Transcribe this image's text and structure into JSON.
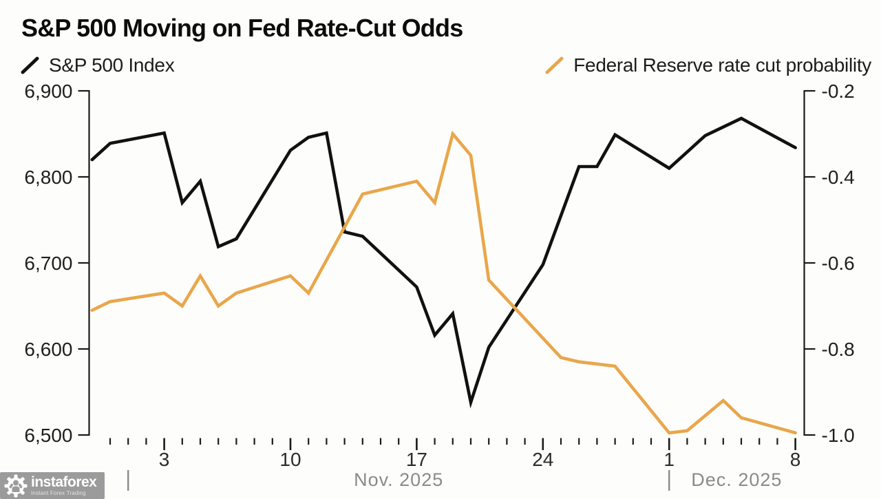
{
  "title": "S&P 500 Moving on Fed Rate-Cut Odds",
  "legend": {
    "left": {
      "label": "S&P 500 Index",
      "color": "#111111"
    },
    "right": {
      "label": "Federal Reserve rate cut probability",
      "color": "#E9A64A"
    }
  },
  "watermark": {
    "brand": "instaforex",
    "tagline": "Instant Forex Trading",
    "box_color": "#9B9B9B"
  },
  "chart_data": {
    "type": "line",
    "title": "S&P 500 Moving on Fed Rate-Cut Odds",
    "grid": false,
    "x_axis": {
      "unit": "calendar days (day 0 = Oct 30, 2025)",
      "first_tick_day": 1,
      "last_tick_day": 39,
      "major_ticks": [
        {
          "day": 4,
          "label": "3"
        },
        {
          "day": 11,
          "label": "10"
        },
        {
          "day": 18,
          "label": "17"
        },
        {
          "day": 25,
          "label": "24"
        },
        {
          "day": 32,
          "label": "1"
        },
        {
          "day": 39,
          "label": "8"
        }
      ],
      "months": [
        {
          "label": "Nov. 2025",
          "divider_day": 2,
          "span_end_day": 32
        },
        {
          "label": "Dec. 2025",
          "divider_day": 32,
          "span_end_day": 39.5
        }
      ]
    },
    "y_axis_left": {
      "min": 6500,
      "max": 6900,
      "tick_labels": [
        "6,900",
        "6,800",
        "6,700",
        "6,600",
        "6,500"
      ],
      "series": "S&P 500 Index"
    },
    "y_axis_right": {
      "min": -1.0,
      "max": -0.2,
      "tick_labels": [
        "-0.2",
        "-0.4",
        "-0.6",
        "-0.8",
        "-1.0"
      ],
      "series": "Federal Reserve rate cut probability"
    },
    "series": [
      {
        "name": "S&P 500 Index",
        "axis": "left",
        "color": "#111111",
        "points": [
          {
            "date": "Oct 30",
            "day": 0,
            "value": 6820
          },
          {
            "date": "Oct 31",
            "day": 1,
            "value": 6839
          },
          {
            "date": "Nov 3",
            "day": 4,
            "value": 6851
          },
          {
            "date": "Nov 4",
            "day": 5,
            "value": 6770
          },
          {
            "date": "Nov 5",
            "day": 6,
            "value": 6795
          },
          {
            "date": "Nov 6",
            "day": 7,
            "value": 6719
          },
          {
            "date": "Nov 7",
            "day": 8,
            "value": 6728
          },
          {
            "date": "Nov 10",
            "day": 11,
            "value": 6831
          },
          {
            "date": "Nov 11",
            "day": 12,
            "value": 6846
          },
          {
            "date": "Nov 12",
            "day": 13,
            "value": 6851
          },
          {
            "date": "Nov 13",
            "day": 14,
            "value": 6736
          },
          {
            "date": "Nov 14",
            "day": 15,
            "value": 6731
          },
          {
            "date": "Nov 17",
            "day": 18,
            "value": 6672
          },
          {
            "date": "Nov 18",
            "day": 19,
            "value": 6616
          },
          {
            "date": "Nov 19",
            "day": 20,
            "value": 6641
          },
          {
            "date": "Nov 20",
            "day": 21,
            "value": 6538
          },
          {
            "date": "Nov 21",
            "day": 22,
            "value": 6602
          },
          {
            "date": "Nov 24",
            "day": 25,
            "value": 6698
          },
          {
            "date": "Nov 25",
            "day": 26,
            "value": 6755
          },
          {
            "date": "Nov 26",
            "day": 27,
            "value": 6812
          },
          {
            "date": "Nov 27",
            "day": 28,
            "value": 6812
          },
          {
            "date": "Nov 28",
            "day": 29,
            "value": 6849
          },
          {
            "date": "Dec 1",
            "day": 32,
            "value": 6810
          },
          {
            "date": "Dec 2",
            "day": 33,
            "value": 6829
          },
          {
            "date": "Dec 3",
            "day": 34,
            "value": 6848
          },
          {
            "date": "Dec 4",
            "day": 35,
            "value": 6858
          },
          {
            "date": "Dec 5",
            "day": 36,
            "value": 6868
          },
          {
            "date": "Dec 8",
            "day": 39,
            "value": 6834
          }
        ]
      },
      {
        "name": "Federal Reserve rate cut probability",
        "axis": "right",
        "color": "#E9A64A",
        "points": [
          {
            "date": "Oct 30",
            "day": 0,
            "value": -0.71
          },
          {
            "date": "Oct 31",
            "day": 1,
            "value": -0.69
          },
          {
            "date": "Nov 3",
            "day": 4,
            "value": -0.67
          },
          {
            "date": "Nov 4",
            "day": 5,
            "value": -0.7
          },
          {
            "date": "Nov 5",
            "day": 6,
            "value": -0.63
          },
          {
            "date": "Nov 6",
            "day": 7,
            "value": -0.7
          },
          {
            "date": "Nov 7",
            "day": 8,
            "value": -0.67
          },
          {
            "date": "Nov 10",
            "day": 11,
            "value": -0.63
          },
          {
            "date": "Nov 11",
            "day": 12,
            "value": -0.67
          },
          {
            "date": "Nov 14",
            "day": 15,
            "value": -0.44
          },
          {
            "date": "Nov 17",
            "day": 18,
            "value": -0.41
          },
          {
            "date": "Nov 18",
            "day": 19,
            "value": -0.46
          },
          {
            "date": "Nov 19",
            "day": 20,
            "value": -0.3
          },
          {
            "date": "Nov 20",
            "day": 21,
            "value": -0.35
          },
          {
            "date": "Nov 21",
            "day": 22,
            "value": -0.64
          },
          {
            "date": "Nov 25",
            "day": 26,
            "value": -0.82
          },
          {
            "date": "Nov 26",
            "day": 27,
            "value": -0.83
          },
          {
            "date": "Nov 28",
            "day": 29,
            "value": -0.84
          },
          {
            "date": "Dec 1",
            "day": 32,
            "value": -0.995
          },
          {
            "date": "Dec 2",
            "day": 33,
            "value": -0.99
          },
          {
            "date": "Dec 4",
            "day": 35,
            "value": -0.92
          },
          {
            "date": "Dec 5",
            "day": 36,
            "value": -0.96
          },
          {
            "date": "Dec 8",
            "day": 39,
            "value": -0.995
          }
        ]
      }
    ]
  }
}
